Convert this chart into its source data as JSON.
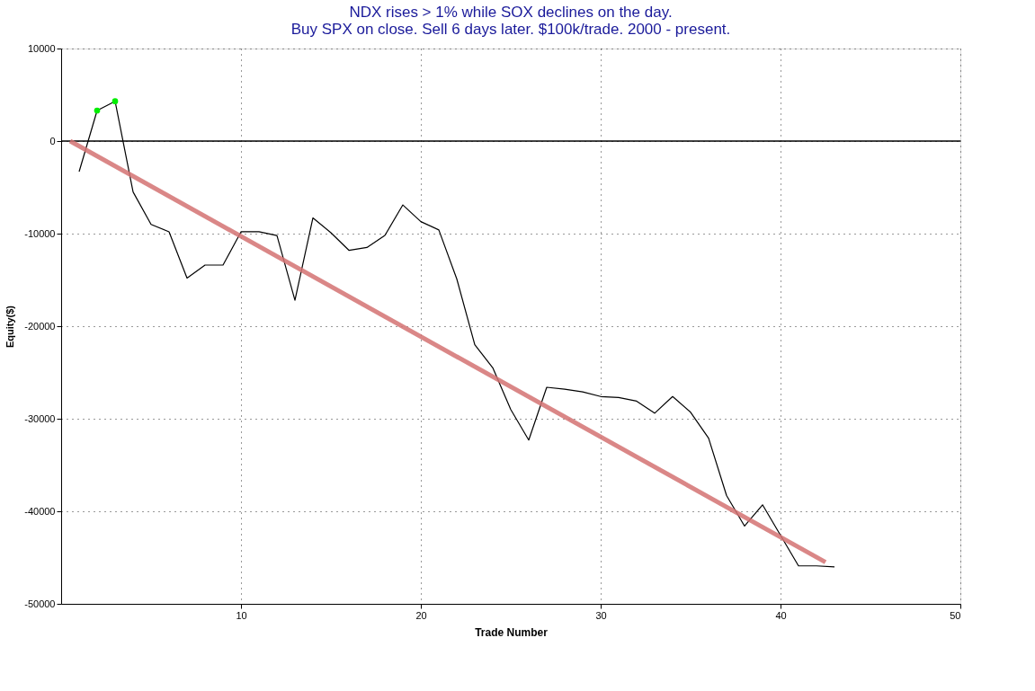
{
  "chart_data": {
    "type": "line",
    "title": "NDX rises > 1% while SOX declines on the day.",
    "subtitle": "Buy SPX on close. Sell 6 days later. $100k/trade. 2000 - present.",
    "xlabel": "Trade Number",
    "ylabel": "Equity($)",
    "x": [
      1,
      2,
      3,
      4,
      5,
      6,
      7,
      8,
      9,
      10,
      11,
      12,
      13,
      14,
      15,
      16,
      17,
      18,
      19,
      20,
      21,
      22,
      23,
      24,
      25,
      26,
      27,
      28,
      29,
      30,
      31,
      32,
      33,
      34,
      35,
      36,
      37,
      38,
      39,
      40,
      41,
      42,
      43
    ],
    "series": [
      {
        "color": "#000000",
        "values": [
          -3300,
          3300,
          4300,
          -5500,
          -9000,
          -9800,
          -14800,
          -13400,
          -13400,
          -9800,
          -9800,
          -10200,
          -17200,
          -8300,
          -9900,
          -11800,
          -11500,
          -10200,
          -6900,
          -8700,
          -9600,
          -14900,
          -22000,
          -24500,
          -29000,
          -32300,
          -26600,
          -26800,
          -27100,
          -27600,
          -27700,
          -28100,
          -29400,
          -27600,
          -29300,
          -32100,
          -38300,
          -41600,
          -39300,
          -42600,
          -45900,
          -45900,
          -46000
        ]
      },
      {
        "type": "scatter",
        "color": "#00ee00",
        "x": [
          2,
          3
        ],
        "values": [
          3300,
          4300
        ]
      },
      {
        "type": "line",
        "color": "#d47272",
        "x": [
          0.5,
          42.5
        ],
        "values": [
          0,
          -45500
        ]
      }
    ],
    "xlim": [
      0,
      50
    ],
    "ylim": [
      -50000,
      10000
    ],
    "xticks": [
      10,
      20,
      30,
      40,
      50
    ],
    "yticks": [
      -50000,
      -40000,
      -30000,
      -20000,
      -10000,
      0,
      10000
    ],
    "ref_lines": [
      {
        "axis": "y",
        "value": 0,
        "color": "#000000",
        "line_style": "solid"
      }
    ],
    "grid": true
  }
}
